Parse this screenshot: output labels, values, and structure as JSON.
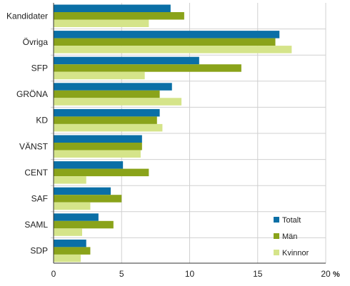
{
  "chart_data": {
    "type": "bar",
    "orientation": "horizontal",
    "categories": [
      "Kandidater",
      "Övriga",
      "SFP",
      "GRÖNA",
      "KD",
      "VÄNST",
      "CENT",
      "SAF",
      "SAML",
      "SDP"
    ],
    "series": [
      {
        "name": "Totalt",
        "color": "#0a6fa6",
        "values": [
          8.6,
          16.6,
          10.7,
          8.7,
          7.8,
          6.5,
          5.1,
          4.2,
          3.3,
          2.4
        ]
      },
      {
        "name": "Män",
        "color": "#8aa31a",
        "values": [
          9.6,
          16.3,
          13.8,
          7.8,
          7.6,
          6.5,
          7.0,
          5.0,
          4.4,
          2.7
        ]
      },
      {
        "name": "Kvinnor",
        "color": "#d5e48a",
        "values": [
          7.0,
          17.5,
          6.7,
          9.4,
          8.0,
          6.4,
          2.4,
          2.7,
          2.1,
          2.0
        ]
      }
    ],
    "xlim": [
      0,
      20
    ],
    "xticks": [
      "0",
      "5",
      "10",
      "15",
      "20"
    ],
    "xunit": "%",
    "grid": true,
    "legend_position": "bottom-right"
  }
}
